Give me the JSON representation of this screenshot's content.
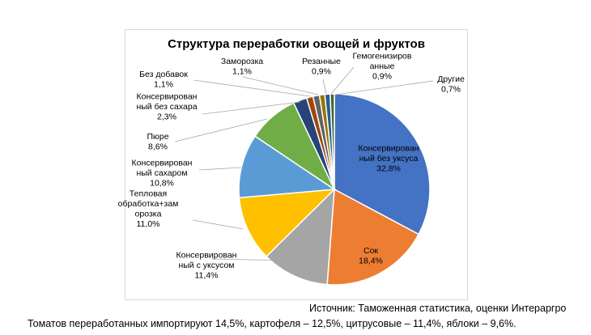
{
  "source": "Источник: Таможенная статистика, оценки Интераргро",
  "footnote": "Томатов переработанных импортируют 14,5%, картофеля – 12,5%, цитрусовые – 11,4%, яблоки – 9,6%.",
  "chart_data": {
    "type": "pie",
    "title": "Структура переработки овощей и фруктов",
    "slices": [
      {
        "name": "Консервированный без уксуса",
        "value": 32.8,
        "color": "#4472C4",
        "label_lines": [
          "Консервирован",
          "ный без уксуса"
        ],
        "value_label": "32,8%"
      },
      {
        "name": "Сок",
        "value": 18.4,
        "color": "#ED7D31",
        "label_lines": [
          "Сок"
        ],
        "value_label": "18,4%"
      },
      {
        "name": "Консервированный с уксусом",
        "value": 11.4,
        "color": "#A5A5A5",
        "label_lines": [
          "Консервирован",
          "ный с уксусом"
        ],
        "value_label": "11,4%"
      },
      {
        "name": "Тепловая обработка+заморозка",
        "value": 11.0,
        "color": "#FFC000",
        "label_lines": [
          "Тепловая",
          "обработка+зам",
          "орозка"
        ],
        "value_label": "11,0%"
      },
      {
        "name": "Консервированный сахаром",
        "value": 10.8,
        "color": "#5B9BD5",
        "label_lines": [
          "Консервирован",
          "ный сахаром"
        ],
        "value_label": "10,8%"
      },
      {
        "name": "Пюре",
        "value": 8.6,
        "color": "#70AD47",
        "label_lines": [
          "Пюре"
        ],
        "value_label": "8,6%"
      },
      {
        "name": "Консервированный без сахара",
        "value": 2.3,
        "color": "#264478",
        "label_lines": [
          "Консервирован",
          "ный без сахара"
        ],
        "value_label": "2,3%"
      },
      {
        "name": "Без добавок",
        "value": 1.1,
        "color": "#9E480E",
        "label_lines": [
          "Без добавок"
        ],
        "value_label": "1,1%"
      },
      {
        "name": "Заморозка",
        "value": 1.1,
        "color": "#636363",
        "label_lines": [
          "Заморозка"
        ],
        "value_label": "1,1%"
      },
      {
        "name": "Резанные",
        "value": 0.9,
        "color": "#997300",
        "label_lines": [
          "Резанные"
        ],
        "value_label": "0,9%"
      },
      {
        "name": "Гемогенизированные",
        "value": 0.9,
        "color": "#255E91",
        "label_lines": [
          "Гемогенизиров",
          "анные"
        ],
        "value_label": "0,9%"
      },
      {
        "name": "Другие",
        "value": 0.7,
        "color": "#43682B",
        "label_lines": [
          "Другие"
        ],
        "value_label": "0,7%"
      }
    ]
  }
}
